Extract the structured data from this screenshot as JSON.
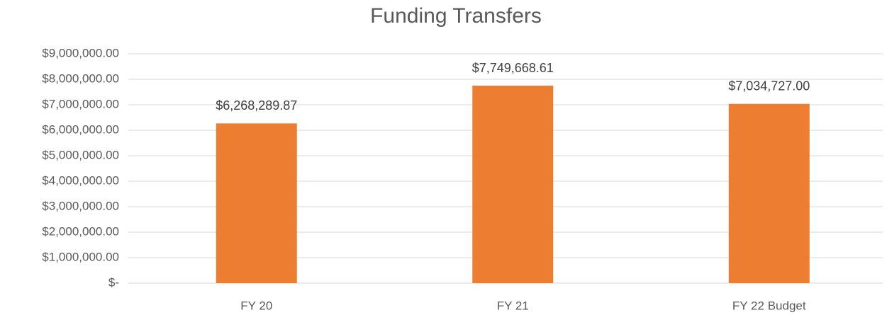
{
  "chart_data": {
    "type": "bar",
    "title": "Funding Transfers",
    "categories": [
      "FY 20",
      "FY 21",
      "FY 22 Budget"
    ],
    "values": [
      6268289.87,
      7749668.61,
      7034727.0
    ],
    "value_labels": [
      "$6,268,289.87",
      "$7,749,668.61",
      "$7,034,727.00"
    ],
    "color": "#ed7d31",
    "ylim": [
      0,
      9000000
    ],
    "yticks": [
      {
        "value": 0,
        "label": "$-"
      },
      {
        "value": 1000000,
        "label": "$1,000,000.00"
      },
      {
        "value": 2000000,
        "label": "$2,000,000.00"
      },
      {
        "value": 3000000,
        "label": "$3,000,000.00"
      },
      {
        "value": 4000000,
        "label": "$4,000,000.00"
      },
      {
        "value": 5000000,
        "label": "$5,000,000.00"
      },
      {
        "value": 6000000,
        "label": "$6,000,000.00"
      },
      {
        "value": 7000000,
        "label": "$7,000,000.00"
      },
      {
        "value": 8000000,
        "label": "$8,000,000.00"
      },
      {
        "value": 9000000,
        "label": "$9,000,000.00"
      }
    ],
    "grid": true
  }
}
